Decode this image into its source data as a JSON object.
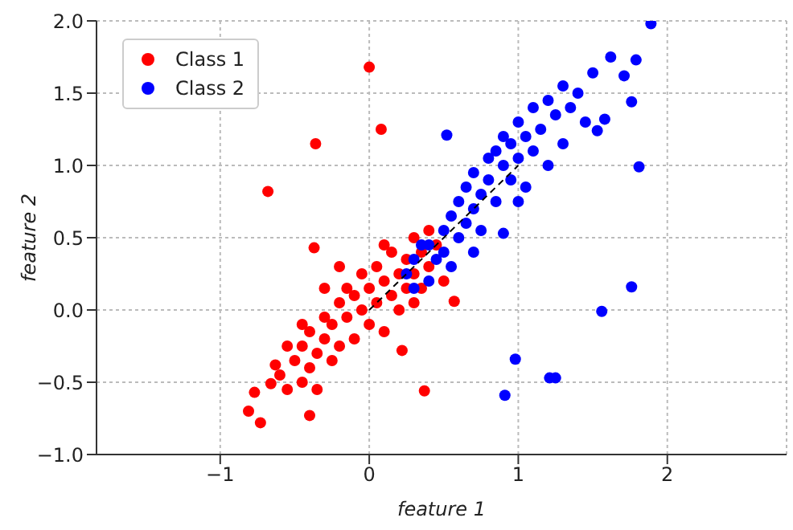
{
  "chart_data": {
    "type": "scatter",
    "xlabel": "feature 1",
    "ylabel": "feature 2",
    "xlim": [
      -1.83,
      2.8
    ],
    "ylim": [
      -1,
      2
    ],
    "xticks": [
      {
        "value": -1,
        "label": "−1"
      },
      0,
      1,
      2
    ],
    "yticks": [
      {
        "value": -1,
        "label": "−1.0"
      },
      {
        "value": -0.5,
        "label": "−0.5"
      },
      {
        "value": 0,
        "label": "0.0"
      },
      {
        "value": 0.5,
        "label": "0.5"
      },
      {
        "value": 1,
        "label": "1.0"
      },
      {
        "value": 1.5,
        "label": "1.5"
      },
      {
        "value": 2,
        "label": "2.0"
      }
    ],
    "grid": true,
    "legend": "top left",
    "marker": "circle",
    "series": [
      {
        "name": "Class 1",
        "color": "#ff0000",
        "x": [
          0,
          0.08,
          -0.36,
          -0.68,
          -0.37,
          0.37,
          -0.81,
          -0.73,
          -0.77,
          -0.4,
          -0.66,
          -0.63,
          -0.45,
          0.22,
          0.57,
          -0.6,
          -0.55,
          -0.5,
          -0.45,
          -0.45,
          -0.4,
          -0.4,
          -0.35,
          -0.35,
          -0.3,
          -0.3,
          -0.25,
          -0.25,
          -0.2,
          -0.2,
          -0.15,
          -0.15,
          -0.1,
          -0.1,
          -0.05,
          -0.05,
          0,
          0,
          0.05,
          0.05,
          0.1,
          0.1,
          0.15,
          0.15,
          0.2,
          0.2,
          0.25,
          0.25,
          0.3,
          0.3,
          0.35,
          0.4,
          0.4,
          0.45,
          0.5,
          -0.2,
          -0.3,
          0.1,
          -0.55,
          0.3,
          0.35
        ],
        "values": [
          1.68,
          1.25,
          1.15,
          0.82,
          0.43,
          -0.56,
          -0.7,
          -0.78,
          -0.57,
          -0.73,
          -0.51,
          -0.38,
          -0.1,
          -0.28,
          0.06,
          -0.45,
          -0.55,
          -0.35,
          -0.5,
          -0.25,
          -0.4,
          -0.15,
          -0.3,
          -0.55,
          -0.2,
          -0.05,
          -0.35,
          -0.1,
          0.05,
          -0.25,
          -0.05,
          0.15,
          -0.2,
          0.1,
          0,
          0.25,
          -0.1,
          0.15,
          0.05,
          0.3,
          -0.15,
          0.2,
          0.1,
          0.4,
          0.25,
          0,
          0.35,
          0.15,
          0.5,
          0.25,
          0.4,
          0.3,
          0.55,
          0.45,
          0.2,
          0.3,
          0.15,
          0.45,
          -0.25,
          0.05,
          0.15
        ]
      },
      {
        "name": "Class 2",
        "color": "#0000ff",
        "x": [
          0.52,
          0.98,
          0.91,
          1.21,
          1.25,
          1.56,
          1.76,
          1.81,
          1.89,
          1.62,
          1.79,
          1.71,
          1.76,
          1.5,
          1.58,
          1.53,
          0.9,
          0.25,
          0.3,
          0.35,
          0.4,
          0.45,
          0.5,
          0.5,
          0.55,
          0.55,
          0.6,
          0.6,
          0.65,
          0.65,
          0.7,
          0.7,
          0.75,
          0.75,
          0.8,
          0.8,
          0.85,
          0.85,
          0.9,
          0.9,
          0.95,
          0.95,
          1,
          1,
          1.05,
          1.05,
          1.1,
          1.1,
          1.15,
          1.2,
          1.2,
          1.25,
          1.3,
          1.3,
          1.35,
          1.4,
          1.45,
          0.4,
          0.3,
          0.7,
          1
        ],
        "values": [
          1.21,
          -0.34,
          -0.59,
          -0.47,
          -0.47,
          -0.01,
          0.16,
          0.99,
          1.98,
          1.75,
          1.73,
          1.62,
          1.44,
          1.64,
          1.32,
          1.24,
          0.53,
          0.25,
          0.35,
          0.45,
          0.2,
          0.35,
          0.55,
          0.4,
          0.65,
          0.3,
          0.5,
          0.75,
          0.6,
          0.85,
          0.7,
          0.95,
          0.8,
          0.55,
          1.05,
          0.9,
          0.75,
          1.1,
          1,
          1.2,
          0.9,
          1.15,
          1.3,
          1.05,
          0.85,
          1.2,
          1.4,
          1.1,
          1.25,
          1.45,
          1,
          1.35,
          1.55,
          1.15,
          1.4,
          1.5,
          1.3,
          0.45,
          0.15,
          0.4,
          0.75
        ]
      },
      {
        "type": "line",
        "color": "#000000",
        "line_style": "dashed",
        "marker": "none",
        "x": [
          0,
          1
        ],
        "values": [
          0,
          1
        ]
      }
    ]
  }
}
